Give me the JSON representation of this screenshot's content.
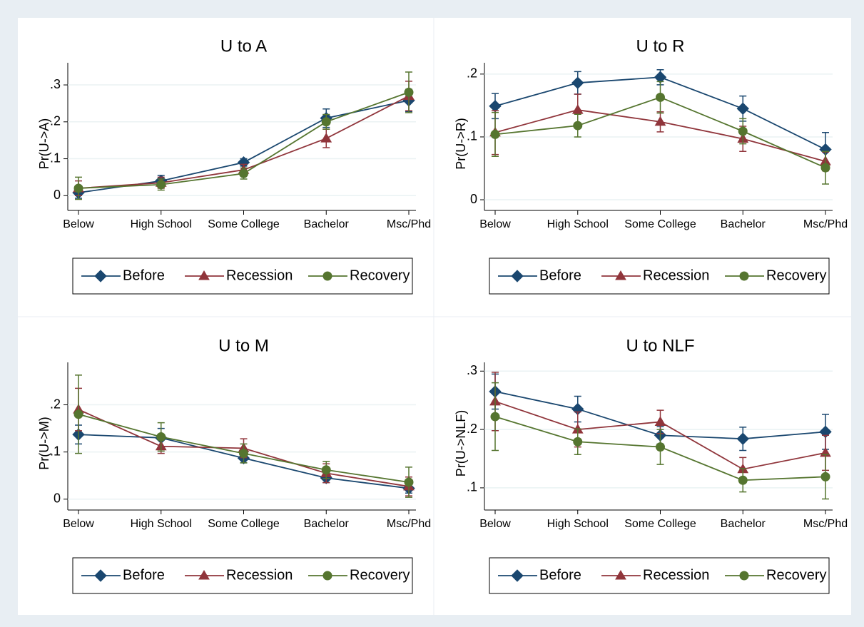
{
  "chart_data": [
    {
      "type": "line",
      "title": "U to A",
      "y_label": "Pr(U->A)",
      "categories": [
        "Below",
        "High School",
        "Some College",
        "Bachelor",
        "Msc/Phd"
      ],
      "ylim": [
        -0.04,
        0.36
      ],
      "yticks": [
        0,
        {
          "value": 0.1,
          "label": ".1"
        },
        {
          "value": 0.2,
          "label": ".2"
        },
        {
          "value": 0.3,
          "label": ".3"
        }
      ],
      "grid": true,
      "series": [
        {
          "name": "Before",
          "color": "#1a476f",
          "marker": "diamond",
          "values": [
            0.008,
            0.04,
            0.09,
            0.21,
            0.258
          ],
          "errors": [
            0.015,
            0.015,
            0.01,
            0.025,
            0.03
          ]
        },
        {
          "name": "Recession",
          "color": "#90353b",
          "marker": "triangle",
          "values": [
            0.02,
            0.035,
            0.07,
            0.155,
            0.27
          ],
          "errors": [
            0.02,
            0.015,
            0.015,
            0.025,
            0.04
          ]
        },
        {
          "name": "Recovery",
          "color": "#55752f",
          "marker": "circle",
          "values": [
            0.02,
            0.03,
            0.06,
            0.2,
            0.28
          ],
          "errors": [
            0.03,
            0.015,
            0.015,
            0.02,
            0.055
          ]
        }
      ]
    },
    {
      "type": "line",
      "title": "U to R",
      "y_label": "Pr(U->R)",
      "categories": [
        "Below",
        "High School",
        "Some College",
        "Bachelor",
        "Msc/Phd"
      ],
      "ylim": [
        -0.017,
        0.218
      ],
      "yticks": [
        0,
        {
          "value": 0.1,
          "label": ".1"
        },
        {
          "value": 0.2,
          "label": ".2"
        }
      ],
      "grid": true,
      "series": [
        {
          "name": "Before",
          "color": "#1a476f",
          "marker": "diamond",
          "values": [
            0.149,
            0.186,
            0.195,
            0.145,
            0.08
          ],
          "errors": [
            0.02,
            0.018,
            0.012,
            0.02,
            0.027
          ]
        },
        {
          "name": "Recession",
          "color": "#90353b",
          "marker": "triangle",
          "values": [
            0.107,
            0.143,
            0.124,
            0.097,
            0.061
          ],
          "errors": [
            0.035,
            0.025,
            0.016,
            0.02,
            0.015
          ]
        },
        {
          "name": "Recovery",
          "color": "#55752f",
          "marker": "circle",
          "values": [
            0.104,
            0.118,
            0.163,
            0.109,
            0.051
          ],
          "errors": [
            0.035,
            0.018,
            0.025,
            0.02,
            0.026
          ]
        }
      ]
    },
    {
      "type": "line",
      "title": "U to M",
      "y_label": "Pr(U->M)",
      "categories": [
        "Below",
        "High School",
        "Some College",
        "Bachelor",
        "Msc/Phd"
      ],
      "ylim": [
        -0.023,
        0.29
      ],
      "yticks": [
        0,
        {
          "value": 0.1,
          "label": ".1"
        },
        {
          "value": 0.2,
          "label": ".2"
        }
      ],
      "grid": true,
      "series": [
        {
          "name": "Before",
          "color": "#1a476f",
          "marker": "diamond",
          "values": [
            0.137,
            0.13,
            0.087,
            0.045,
            0.023
          ],
          "errors": [
            0.02,
            0.02,
            0.01,
            0.01,
            0.01
          ]
        },
        {
          "name": "Recession",
          "color": "#90353b",
          "marker": "triangle",
          "values": [
            0.19,
            0.112,
            0.108,
            0.055,
            0.027
          ],
          "errors": [
            0.045,
            0.015,
            0.02,
            0.02,
            0.02
          ]
        },
        {
          "name": "Recovery",
          "color": "#55752f",
          "marker": "circle",
          "values": [
            0.18,
            0.132,
            0.097,
            0.062,
            0.036
          ],
          "errors": [
            0.083,
            0.03,
            0.02,
            0.018,
            0.032
          ]
        }
      ]
    },
    {
      "type": "line",
      "title": "U to NLF",
      "y_label": "Pr(U->NLF)",
      "categories": [
        "Below",
        "High School",
        "Some College",
        "Bachelor",
        "Msc/Phd"
      ],
      "ylim": [
        0.062,
        0.315
      ],
      "yticks": [
        {
          "value": 0.1,
          "label": ".1"
        },
        {
          "value": 0.2,
          "label": ".2"
        },
        {
          "value": 0.3,
          "label": ".3"
        }
      ],
      "grid": true,
      "series": [
        {
          "name": "Before",
          "color": "#1a476f",
          "marker": "diamond",
          "values": [
            0.265,
            0.235,
            0.19,
            0.184,
            0.196
          ],
          "errors": [
            0.03,
            0.022,
            0.015,
            0.02,
            0.03
          ]
        },
        {
          "name": "Recession",
          "color": "#90353b",
          "marker": "triangle",
          "values": [
            0.248,
            0.2,
            0.213,
            0.132,
            0.16
          ],
          "errors": [
            0.05,
            0.03,
            0.02,
            0.02,
            0.03
          ]
        },
        {
          "name": "Recovery",
          "color": "#55752f",
          "marker": "circle",
          "values": [
            0.222,
            0.179,
            0.17,
            0.113,
            0.119
          ],
          "errors": [
            0.058,
            0.022,
            0.03,
            0.02,
            0.038
          ]
        }
      ]
    }
  ]
}
